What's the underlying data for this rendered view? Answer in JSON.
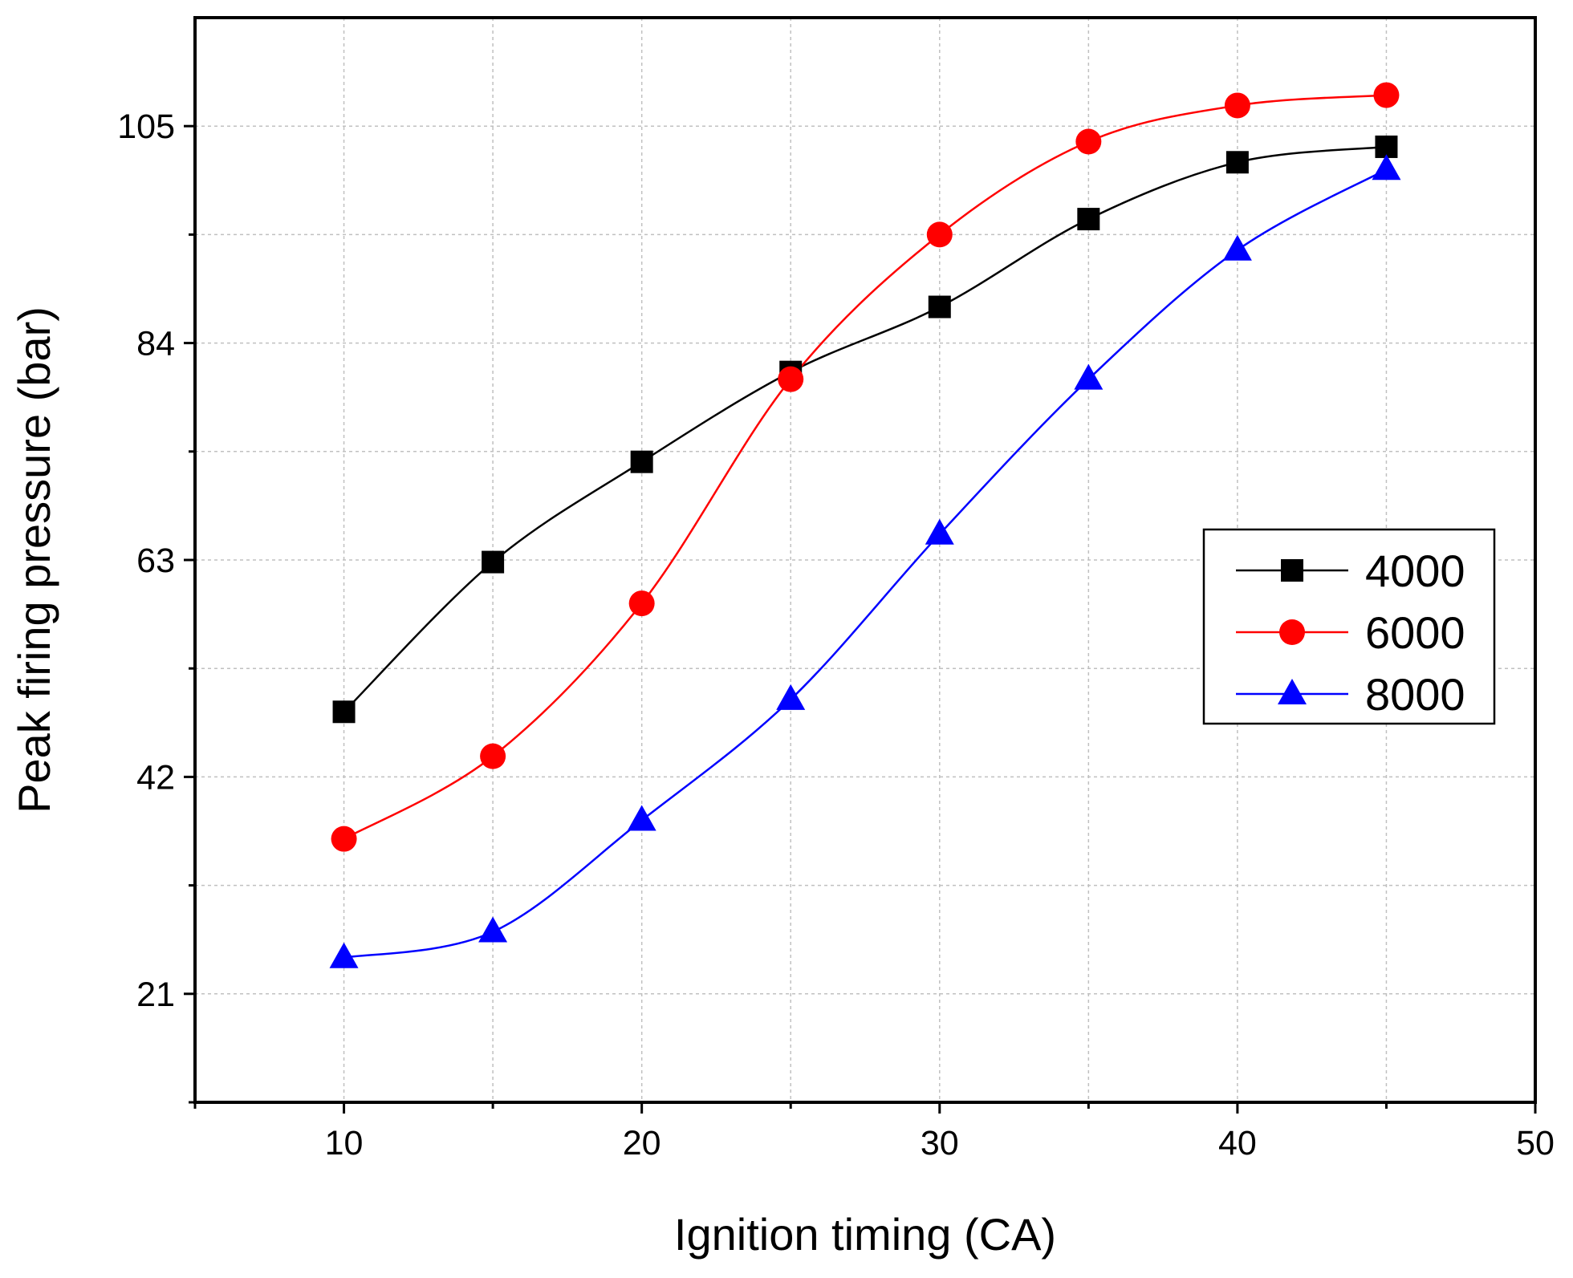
{
  "chart_data": {
    "type": "line",
    "title": "",
    "xlabel": "Ignition timing (CA)",
    "ylabel": "Peak firing pressure (bar)",
    "xlim": [
      5,
      50
    ],
    "ylim": [
      10.5,
      115.5
    ],
    "x_ticks": [
      10,
      20,
      30,
      40,
      50
    ],
    "y_ticks": [
      21,
      42,
      63,
      84,
      105
    ],
    "x_minor_ticks": [
      15,
      25,
      35,
      45
    ],
    "y_minor_ticks": [
      31.5,
      52.5,
      73.5,
      94.5
    ],
    "grid": true,
    "legend_position": "right",
    "categories_x": [
      10,
      15,
      20,
      25,
      30,
      35,
      40,
      45
    ],
    "series": [
      {
        "name": "4000",
        "color": "#000000",
        "marker": "square",
        "values": [
          48.3,
          62.8,
          72.5,
          81.2,
          87.5,
          96.0,
          101.5,
          103.0
        ]
      },
      {
        "name": "6000",
        "color": "#ff0000",
        "marker": "circle",
        "values": [
          36.0,
          44.0,
          58.8,
          80.5,
          94.5,
          103.5,
          107.0,
          108.0
        ]
      },
      {
        "name": "8000",
        "color": "#0000ff",
        "marker": "triangle",
        "values": [
          24.5,
          27.0,
          37.8,
          49.5,
          65.5,
          80.5,
          93.0,
          100.8
        ]
      }
    ]
  }
}
